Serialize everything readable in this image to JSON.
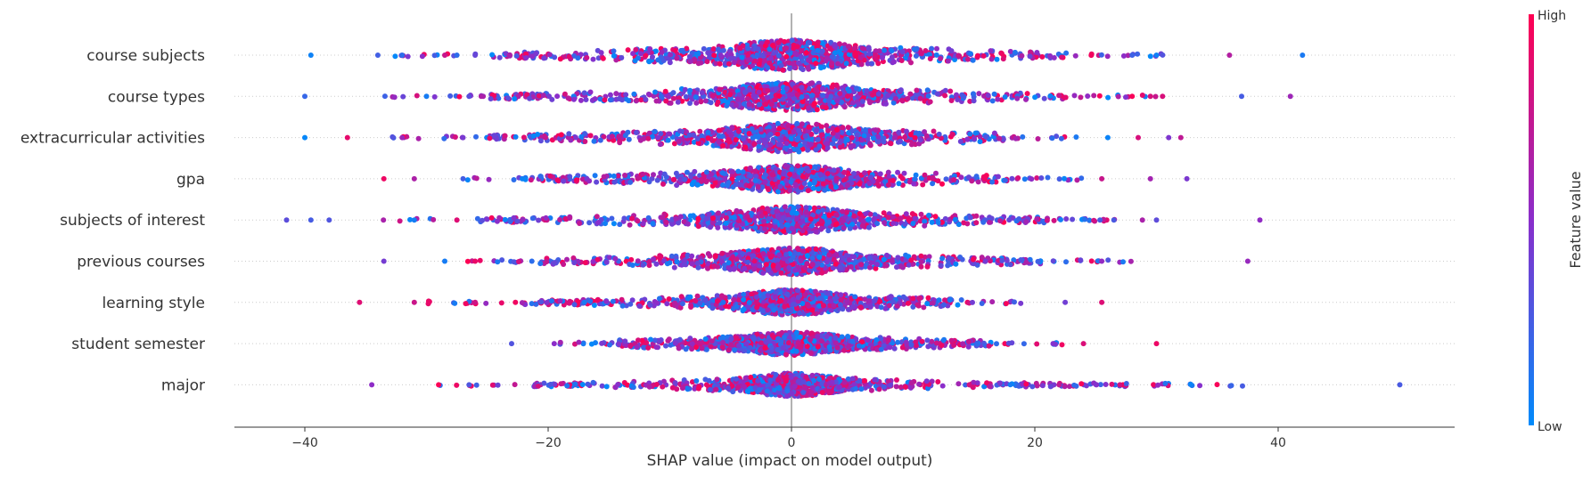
{
  "chart_data": {
    "type": "scatter",
    "subtype": "shap-beeswarm",
    "xlabel": "SHAP value (impact on model output)",
    "xlim": [
      -46,
      55
    ],
    "x_ticks": [
      "−40",
      "−20",
      "0",
      "20",
      "40"
    ],
    "x_tick_values": [
      -40,
      -20,
      0,
      20,
      40
    ],
    "colorbar": {
      "title": "Feature value",
      "high_label": "High",
      "low_label": "Low",
      "low_color": "#008bfb",
      "high_color": "#ff0052"
    },
    "features": [
      {
        "name": "course subjects",
        "min": -39.5,
        "max": 42,
        "outliers": [
          -39.5,
          -34,
          -32,
          -28.5,
          -27.5,
          -26,
          28,
          30,
          36,
          42
        ],
        "dense_width": 17,
        "core_spread": 9
      },
      {
        "name": "course types",
        "min": -40,
        "max": 41,
        "outliers": [
          -40,
          -30,
          -26.5,
          -25.5,
          28,
          29.5,
          30.5,
          37,
          41
        ],
        "dense_width": 16,
        "core_spread": 9
      },
      {
        "name": "extracurricular activities",
        "min": -40,
        "max": 32,
        "outliers": [
          -40,
          -36.5,
          -32,
          -27,
          26,
          28.5,
          31,
          32
        ],
        "dense_width": 16,
        "core_spread": 9
      },
      {
        "name": "gpa",
        "min": -33.5,
        "max": 32.5,
        "outliers": [
          -33.5,
          -31,
          -27,
          25.5,
          29.5,
          32.5
        ],
        "dense_width": 15,
        "core_spread": 8
      },
      {
        "name": "subjects of interest",
        "min": -41.5,
        "max": 38.5,
        "outliers": [
          -41.5,
          -39.5,
          -38,
          -31,
          -27.5,
          26.5,
          30,
          38.5
        ],
        "dense_width": 15,
        "core_spread": 8
      },
      {
        "name": "previous courses",
        "min": -33.5,
        "max": 37.5,
        "outliers": [
          -33.5,
          -28.5,
          -26,
          25.5,
          37.5
        ],
        "dense_width": 15,
        "core_spread": 8
      },
      {
        "name": "learning style",
        "min": -35.5,
        "max": 25.5,
        "outliers": [
          -35.5,
          -31,
          -26,
          22.5,
          25.5
        ],
        "dense_width": 14,
        "core_spread": 7
      },
      {
        "name": "student semester",
        "min": -23,
        "max": 30,
        "outliers": [
          -23,
          -19.5,
          21.5,
          24,
          30
        ],
        "dense_width": 13,
        "core_spread": 7
      },
      {
        "name": "major",
        "min": -34.5,
        "max": 50,
        "outliers": [
          -34.5,
          -29,
          -26.5,
          22,
          27,
          50
        ],
        "dense_width": 13,
        "core_spread": 6
      }
    ]
  }
}
